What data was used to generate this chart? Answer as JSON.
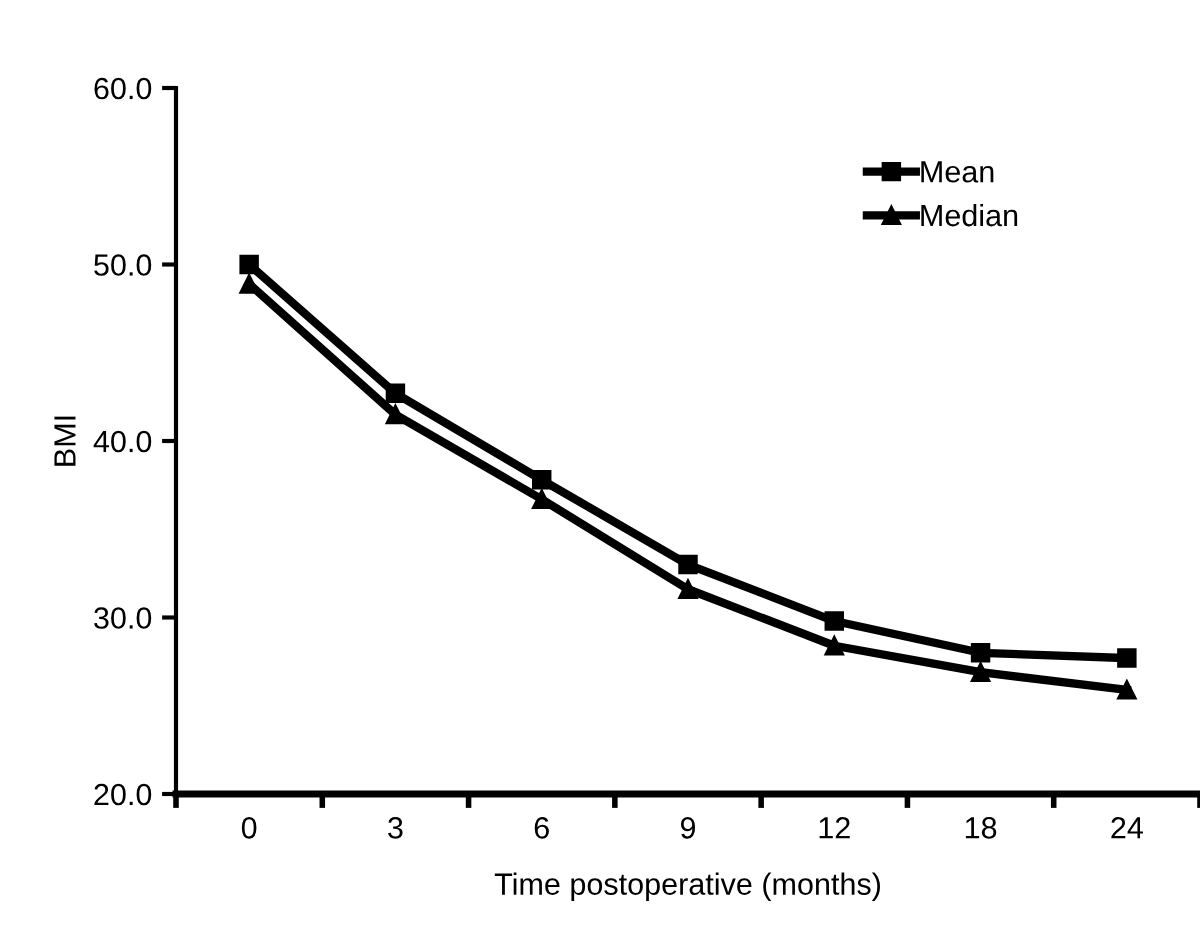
{
  "chart_data": {
    "type": "line",
    "xlabel": "Time postoperative (months)",
    "ylabel": "BMI",
    "categories": [
      "0",
      "3",
      "6",
      "9",
      "12",
      "18",
      "24"
    ],
    "series": [
      {
        "name": "Mean",
        "color": "#000000",
        "marker": "square",
        "values": [
          50.0,
          42.7,
          37.8,
          33.0,
          29.8,
          28.0,
          27.7
        ]
      },
      {
        "name": "Median",
        "color": "#000000",
        "marker": "triangle",
        "values": [
          48.9,
          41.5,
          36.7,
          31.6,
          28.4,
          26.9,
          25.9
        ]
      }
    ],
    "ylim": [
      20,
      60
    ],
    "yticks": [
      {
        "value": 20,
        "label": "20.0"
      },
      {
        "value": 30,
        "label": "30.0"
      },
      {
        "value": 40,
        "label": "40.0"
      },
      {
        "value": 50,
        "label": "50.0"
      },
      {
        "value": 60,
        "label": "60.0"
      }
    ],
    "legend": "top right",
    "grid": false,
    "line_style": "solid"
  }
}
